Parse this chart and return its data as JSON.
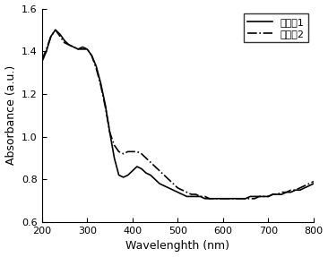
{
  "title": "",
  "xlabel": "Wavelenghth (nm)",
  "ylabel": "Absorbance (a.u.)",
  "xlim": [
    200,
    800
  ],
  "ylim": [
    0.6,
    1.6
  ],
  "xticks": [
    200,
    300,
    400,
    500,
    600,
    700,
    800
  ],
  "yticks": [
    0.6,
    0.8,
    1.0,
    1.2,
    1.4,
    1.6
  ],
  "legend": [
    "比较例1",
    "比较例2"
  ],
  "line1_style": "-",
  "line2_style": "-.",
  "line_color": "#000000",
  "line_width": 1.2,
  "series1": {
    "x": [
      200,
      210,
      220,
      230,
      240,
      250,
      260,
      270,
      280,
      290,
      300,
      310,
      320,
      330,
      340,
      350,
      360,
      370,
      380,
      390,
      400,
      410,
      420,
      430,
      440,
      450,
      460,
      470,
      480,
      490,
      500,
      510,
      520,
      530,
      540,
      550,
      560,
      570,
      580,
      590,
      600,
      610,
      620,
      630,
      640,
      650,
      660,
      670,
      680,
      690,
      700,
      710,
      720,
      730,
      740,
      750,
      760,
      770,
      780,
      790,
      800
    ],
    "y": [
      1.35,
      1.4,
      1.47,
      1.5,
      1.48,
      1.45,
      1.43,
      1.42,
      1.41,
      1.41,
      1.41,
      1.38,
      1.33,
      1.25,
      1.15,
      1.02,
      0.9,
      0.82,
      0.81,
      0.82,
      0.84,
      0.86,
      0.85,
      0.83,
      0.82,
      0.8,
      0.78,
      0.77,
      0.76,
      0.75,
      0.74,
      0.73,
      0.72,
      0.72,
      0.72,
      0.72,
      0.71,
      0.71,
      0.71,
      0.71,
      0.71,
      0.71,
      0.71,
      0.71,
      0.71,
      0.71,
      0.72,
      0.72,
      0.72,
      0.72,
      0.72,
      0.73,
      0.73,
      0.73,
      0.74,
      0.74,
      0.75,
      0.75,
      0.76,
      0.77,
      0.78
    ]
  },
  "series2": {
    "x": [
      200,
      210,
      220,
      230,
      240,
      250,
      260,
      270,
      280,
      290,
      300,
      310,
      320,
      330,
      340,
      350,
      360,
      370,
      380,
      390,
      400,
      410,
      420,
      430,
      440,
      450,
      460,
      470,
      480,
      490,
      500,
      510,
      520,
      530,
      540,
      550,
      560,
      570,
      580,
      590,
      600,
      610,
      620,
      630,
      640,
      650,
      660,
      670,
      680,
      690,
      700,
      710,
      720,
      730,
      740,
      750,
      760,
      770,
      780,
      790,
      800
    ],
    "y": [
      1.36,
      1.41,
      1.47,
      1.5,
      1.47,
      1.44,
      1.43,
      1.42,
      1.41,
      1.42,
      1.41,
      1.38,
      1.32,
      1.24,
      1.14,
      1.02,
      0.96,
      0.93,
      0.92,
      0.93,
      0.93,
      0.93,
      0.92,
      0.9,
      0.88,
      0.86,
      0.84,
      0.82,
      0.8,
      0.78,
      0.76,
      0.75,
      0.74,
      0.73,
      0.73,
      0.72,
      0.72,
      0.71,
      0.71,
      0.71,
      0.71,
      0.71,
      0.71,
      0.71,
      0.71,
      0.71,
      0.71,
      0.71,
      0.72,
      0.72,
      0.72,
      0.73,
      0.73,
      0.74,
      0.74,
      0.75,
      0.75,
      0.76,
      0.77,
      0.78,
      0.79
    ]
  },
  "background_color": "#ffffff"
}
